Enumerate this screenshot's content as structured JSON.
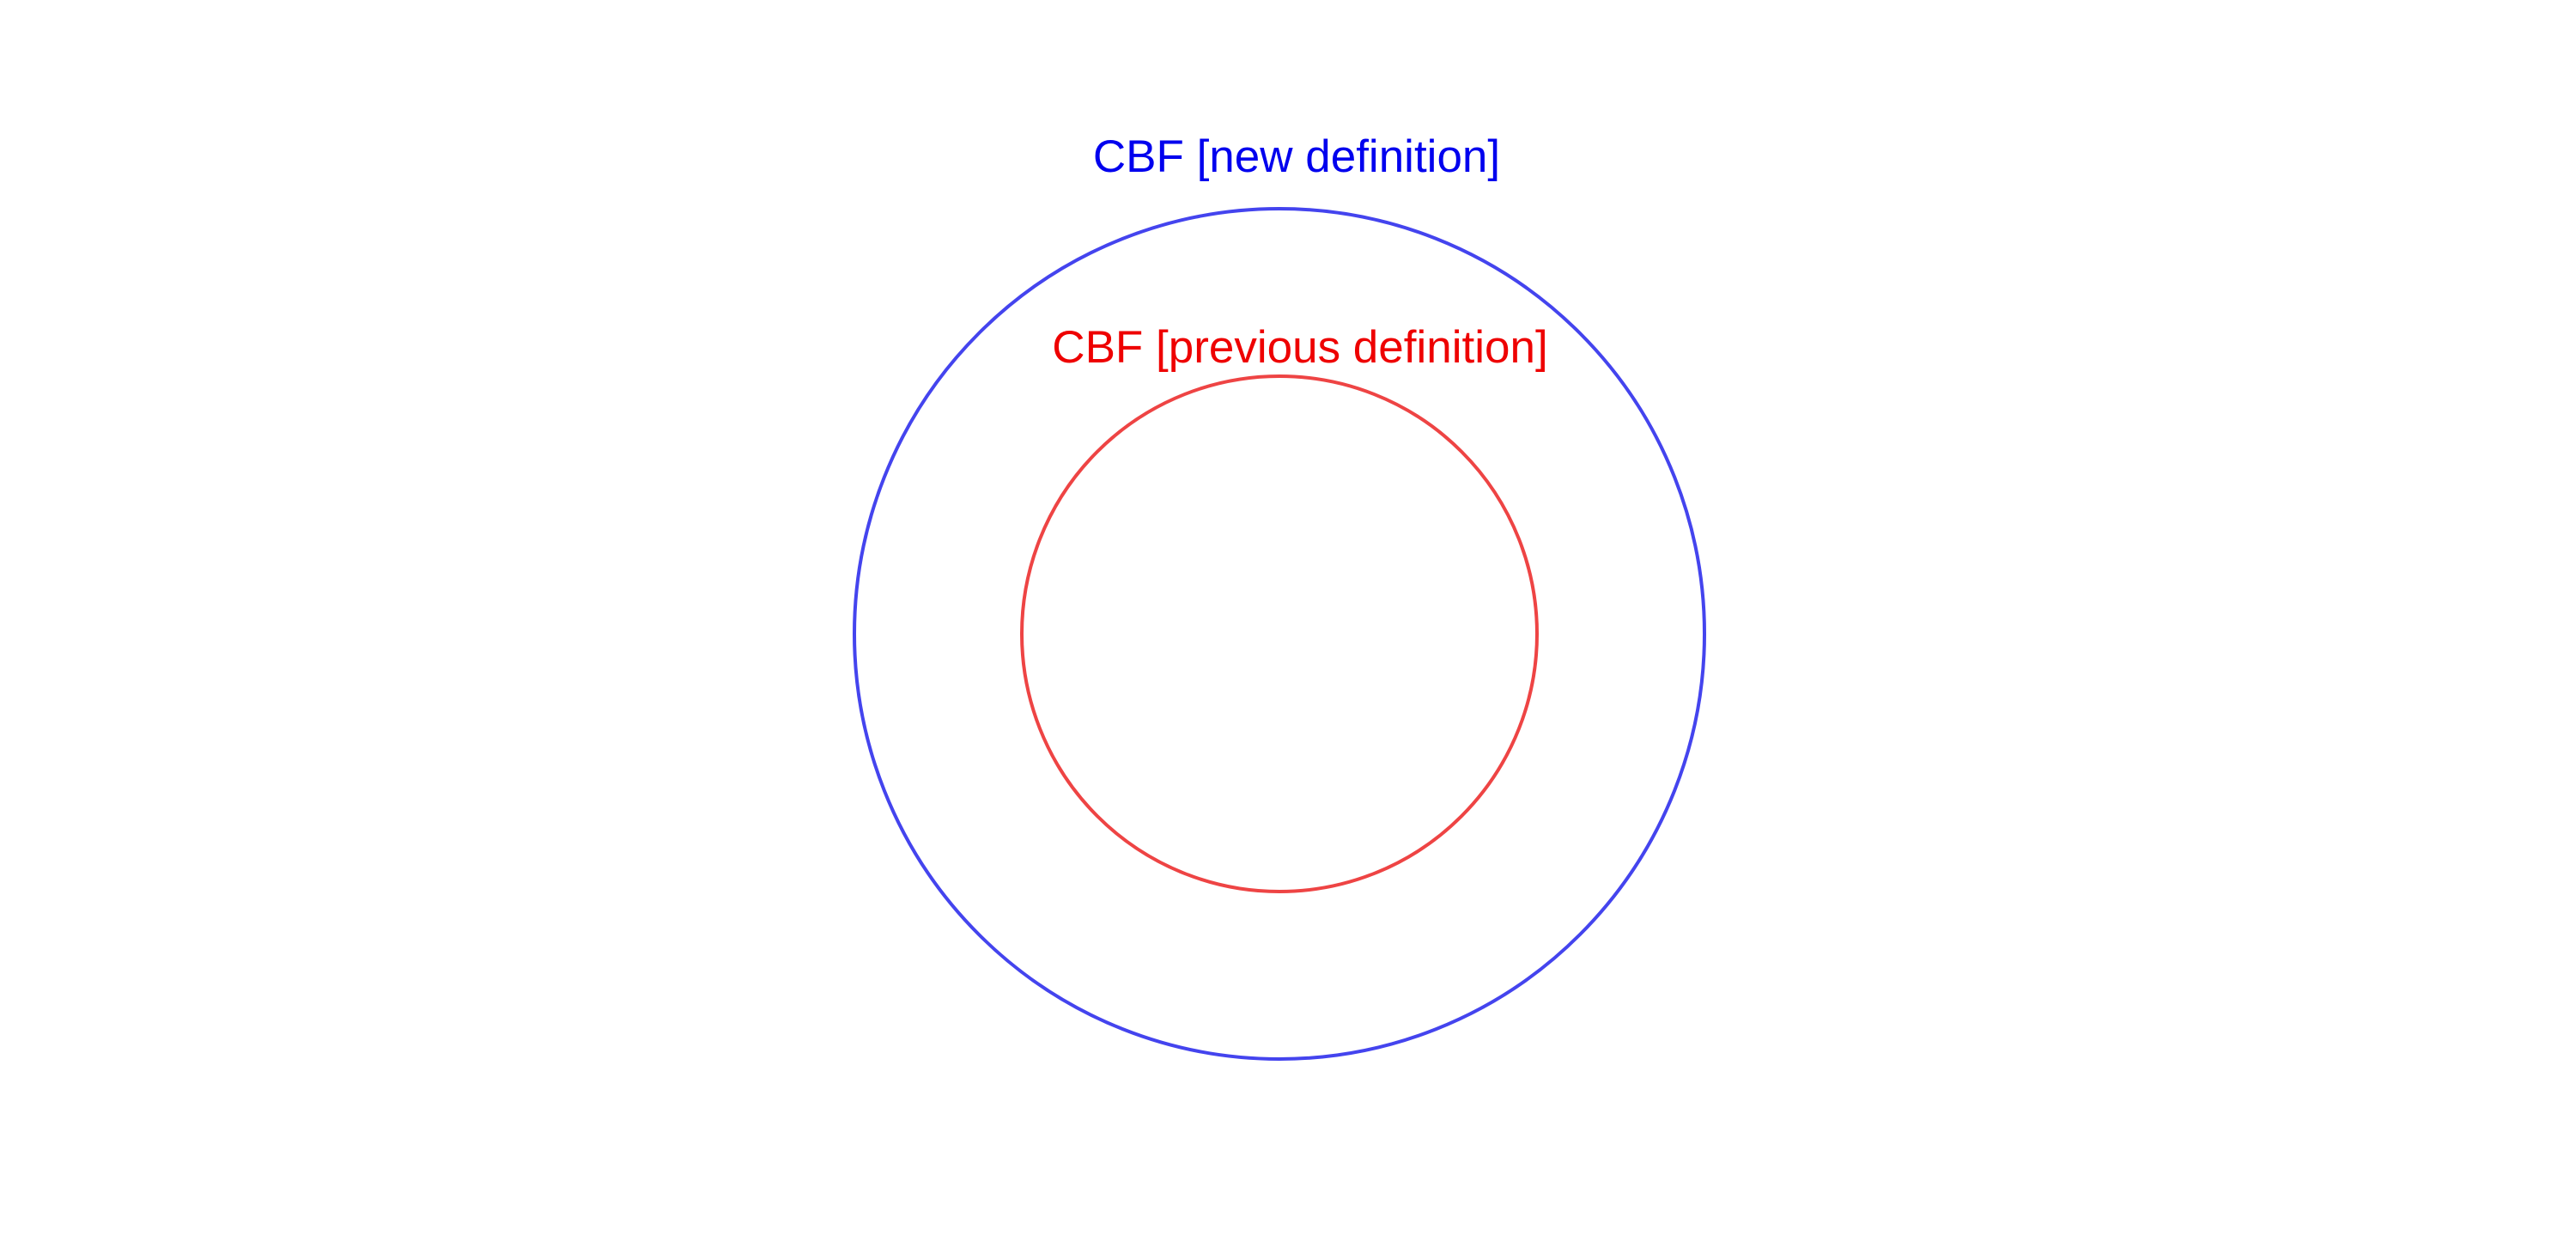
{
  "diagram": {
    "outer": {
      "label": "CBF [new definition]",
      "color": "#0000ee",
      "stroke_color": "#4444ee"
    },
    "inner": {
      "label": "CBF [previous definition]",
      "color": "#ee0000",
      "stroke_color": "#ee4444"
    }
  }
}
